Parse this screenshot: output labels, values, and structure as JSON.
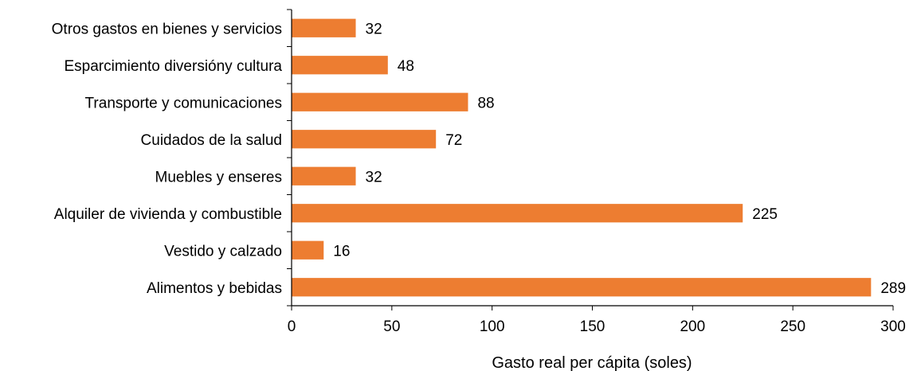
{
  "chart_data": {
    "type": "bar",
    "orientation": "horizontal",
    "categories": [
      "Otros gastos en bienes y servicios",
      "Esparcimiento diversióny cultura",
      "Transporte y comunicaciones",
      "Cuidados de la salud",
      "Muebles y enseres",
      "Alquiler de vivienda y combustible",
      "Vestido y calzado",
      "Alimentos y bebidas"
    ],
    "values": [
      32,
      48,
      88,
      72,
      32,
      225,
      16,
      289
    ],
    "data_labels": [
      "32",
      "48",
      "88",
      "72",
      "32",
      "225",
      "16",
      "289"
    ],
    "xlabel": "Gasto real per cápita (soles)",
    "ylabel": "",
    "title": "",
    "xlim": [
      0,
      300
    ],
    "xticks": [
      "0",
      "50",
      "100",
      "150",
      "200",
      "250",
      "300"
    ],
    "grid": false,
    "legend": "none",
    "bar_color": "#ED7D31",
    "axis_color": "#000000"
  }
}
